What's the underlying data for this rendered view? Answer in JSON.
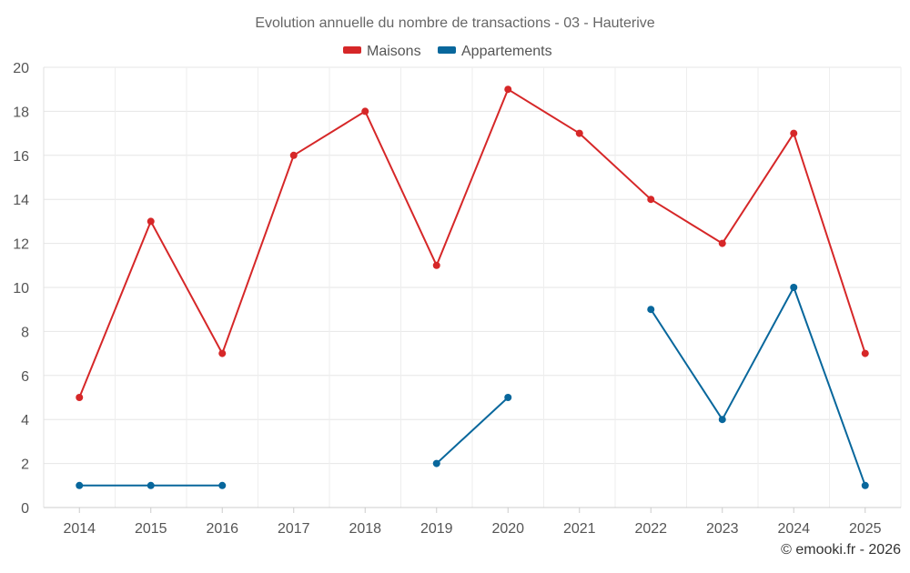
{
  "chart_data": {
    "type": "line",
    "title": "Evolution annuelle du nombre de transactions - 03 - Hauterive",
    "x": [
      "2014",
      "2015",
      "2016",
      "2017",
      "2018",
      "2019",
      "2020",
      "2021",
      "2022",
      "2023",
      "2024",
      "2025"
    ],
    "ylim": [
      0,
      20
    ],
    "yticks": [
      0,
      2,
      4,
      6,
      8,
      10,
      12,
      14,
      16,
      18,
      20
    ],
    "grid": true,
    "legend_position": "top-center",
    "series": [
      {
        "name": "Maisons",
        "color": "#d62728",
        "values": [
          5,
          13,
          7,
          16,
          18,
          11,
          19,
          17,
          14,
          12,
          17,
          7
        ]
      },
      {
        "name": "Appartements",
        "color": "#08679c",
        "values": [
          1,
          1,
          1,
          null,
          null,
          2,
          5,
          null,
          9,
          4,
          10,
          1
        ]
      }
    ],
    "credit": "© emooki.fr - 2026"
  }
}
